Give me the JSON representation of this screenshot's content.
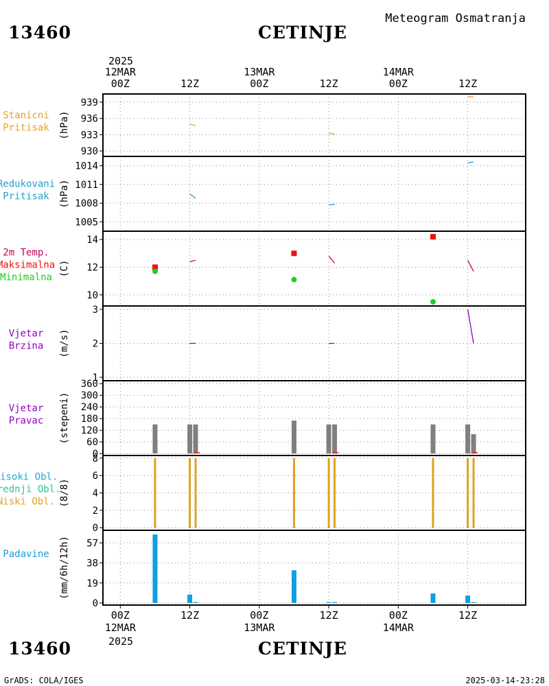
{
  "header": {
    "station_id": "13460",
    "station_name": "CETINJE",
    "product": "Meteogram Osmatranja"
  },
  "footer": {
    "station_id": "13460",
    "station_name": "CETINJE",
    "credit": "GrADS: COLA/IGES",
    "timestamp": "2025-03-14-23:28"
  },
  "time_axis": {
    "top_year": "2025",
    "bottom_year": "2025",
    "ticks": [
      {
        "t": 0,
        "hour": "00Z",
        "date": "12MAR"
      },
      {
        "t": 12,
        "hour": "12Z",
        "date": ""
      },
      {
        "t": 24,
        "hour": "00Z",
        "date": "13MAR"
      },
      {
        "t": 36,
        "hour": "12Z",
        "date": ""
      },
      {
        "t": 48,
        "hour": "00Z",
        "date": "14MAR"
      },
      {
        "t": 60,
        "hour": "12Z",
        "date": ""
      }
    ],
    "range_hours": [
      -3,
      70
    ]
  },
  "colors": {
    "station_pressure": "#e8a020",
    "reduced_pressure": "#20a0c8",
    "temperature_line": "#c8005a",
    "t_max": "#ee1111",
    "t_min": "#22cc22",
    "wind": "#9000c0",
    "wind_dir_bar": "#7f7f7f",
    "wind_dir_marker": "#ee2222",
    "cloud_low": "#e0a020",
    "cloud_mid": "#20c8a0",
    "cloud_high": "#20a8d0",
    "precip": "#10a0e0",
    "grid": "#888888"
  },
  "chart_data": [
    {
      "type": "line",
      "panel": "station_pressure",
      "labels": [
        "Stanicni",
        "Pritisak"
      ],
      "label_color": "#e8a020",
      "ylabel": "(hPa)",
      "ylim": [
        929,
        940.5
      ],
      "yticks": [
        930,
        933,
        936,
        939
      ],
      "series": [
        {
          "color": "#e8a020",
          "x": [
            12,
            13
          ],
          "values": [
            935.0,
            934.6
          ]
        },
        {
          "color": "#e8a020",
          "x": [
            36,
            37
          ],
          "values": [
            933.3,
            933.1
          ]
        },
        {
          "color": "#e8a020",
          "x": [
            60,
            61
          ],
          "values": [
            940.0,
            940.0
          ]
        }
      ]
    },
    {
      "type": "line",
      "panel": "reduced_pressure",
      "labels": [
        "Redukovani",
        "Pritisak"
      ],
      "label_color": "#20a0c8",
      "ylabel": "(hPa)",
      "ylim": [
        1003.5,
        1015.5
      ],
      "yticks": [
        1005,
        1008,
        1011,
        1014
      ],
      "series": [
        {
          "color": "#20a0c8",
          "x": [
            12,
            13
          ],
          "values": [
            1009.5,
            1008.8
          ]
        },
        {
          "color": "#20a0c8",
          "x": [
            36,
            37
          ],
          "values": [
            1007.7,
            1007.8
          ]
        },
        {
          "color": "#20a0c8",
          "x": [
            60,
            61
          ],
          "values": [
            1014.5,
            1014.6
          ]
        }
      ]
    },
    {
      "type": "scatter",
      "panel": "temperature",
      "labels": [
        "2m Temp.",
        "Maksimalna",
        "Minimalna"
      ],
      "label_colors": [
        "#c8005a",
        "#ee1111",
        "#22cc22"
      ],
      "ylabel": "(C)",
      "ylim": [
        9.2,
        14.6
      ],
      "yticks": [
        10,
        12,
        14
      ],
      "series": [
        {
          "name": "Maksimalna",
          "color": "#ee1111",
          "marker": "square",
          "x": [
            6,
            30,
            54
          ],
          "values": [
            12.0,
            13.0,
            14.2
          ]
        },
        {
          "name": "Minimalna",
          "color": "#22cc22",
          "marker": "circle",
          "x": [
            6,
            30,
            54
          ],
          "values": [
            11.7,
            11.1,
            9.5
          ]
        }
      ],
      "lines": [
        {
          "color": "#c8005a",
          "x": [
            12,
            13
          ],
          "values": [
            12.4,
            12.5
          ]
        },
        {
          "color": "#c8005a",
          "x": [
            36,
            37
          ],
          "values": [
            12.8,
            12.3
          ]
        },
        {
          "color": "#c8005a",
          "x": [
            60,
            61
          ],
          "values": [
            12.5,
            11.7
          ]
        }
      ]
    },
    {
      "type": "line",
      "panel": "wind_speed",
      "labels": [
        "Vjetar",
        "Brzina"
      ],
      "label_color": "#9000c0",
      "ylabel": "(m/s)",
      "ylim": [
        0.9,
        3.1
      ],
      "yticks": [
        1,
        2,
        3
      ],
      "series": [
        {
          "color": "#9000c0",
          "x": [
            12,
            13
          ],
          "values": [
            2.0,
            2.0
          ]
        },
        {
          "color": "#9000c0",
          "x": [
            36,
            37
          ],
          "values": [
            2.0,
            2.0
          ]
        },
        {
          "color": "#9000c0",
          "x": [
            60,
            61
          ],
          "values": [
            3.0,
            2.0
          ]
        }
      ]
    },
    {
      "type": "bar",
      "panel": "wind_direction",
      "labels": [
        "Vjetar",
        "Pravac"
      ],
      "label_color": "#9000c0",
      "ylabel": "(stepeni)",
      "ylim": [
        -10,
        375
      ],
      "yticks": [
        0,
        60,
        120,
        180,
        240,
        300,
        360
      ],
      "series": [
        {
          "name": "direction",
          "color": "#7f7f7f",
          "x": [
            6,
            12,
            13,
            30,
            36,
            37,
            54,
            60,
            61
          ],
          "values": [
            150,
            150,
            150,
            170,
            150,
            150,
            150,
            150,
            100
          ]
        }
      ],
      "markers": [
        {
          "color": "#ee2222",
          "x": [
            13,
            37,
            61
          ],
          "values": [
            5,
            5,
            5
          ]
        }
      ]
    },
    {
      "type": "bar",
      "panel": "clouds",
      "labels": [
        "Visoki Obl.",
        "Srednji Obl.",
        "Niski Obl."
      ],
      "label_colors": [
        "#20a8d0",
        "#20c8a0",
        "#e0a020"
      ],
      "ylabel": "(8/8)",
      "ylim": [
        -0.3,
        8.3
      ],
      "yticks": [
        0,
        2,
        4,
        6,
        8
      ],
      "series": [
        {
          "name": "Niski Obl.",
          "color": "#e0a020",
          "x": [
            6,
            12,
            13,
            30,
            36,
            37,
            54,
            60,
            61
          ],
          "values": [
            8,
            8,
            8,
            8,
            8,
            8,
            8,
            8,
            8
          ]
        },
        {
          "name": "Srednji Obl.",
          "color": "#20c8a0",
          "x": [
            6,
            12,
            13,
            30,
            36,
            37,
            54,
            60,
            61
          ],
          "values": [
            0,
            0,
            0,
            0,
            0,
            0,
            0,
            0,
            0
          ]
        }
      ]
    },
    {
      "type": "bar",
      "panel": "precipitation",
      "labels": [
        "Padavine"
      ],
      "label_color": "#10a0e0",
      "ylabel": "(mm/6h/12h)",
      "ylim": [
        -2,
        69
      ],
      "yticks": [
        0,
        19,
        38,
        57
      ],
      "series": [
        {
          "name": "Padavine",
          "color": "#10a0e0",
          "x": [
            6,
            12,
            13,
            30,
            36,
            37,
            54,
            60,
            61
          ],
          "values": [
            65,
            8,
            0.8,
            31,
            0.8,
            0.8,
            9,
            7,
            0.8
          ]
        }
      ]
    }
  ]
}
